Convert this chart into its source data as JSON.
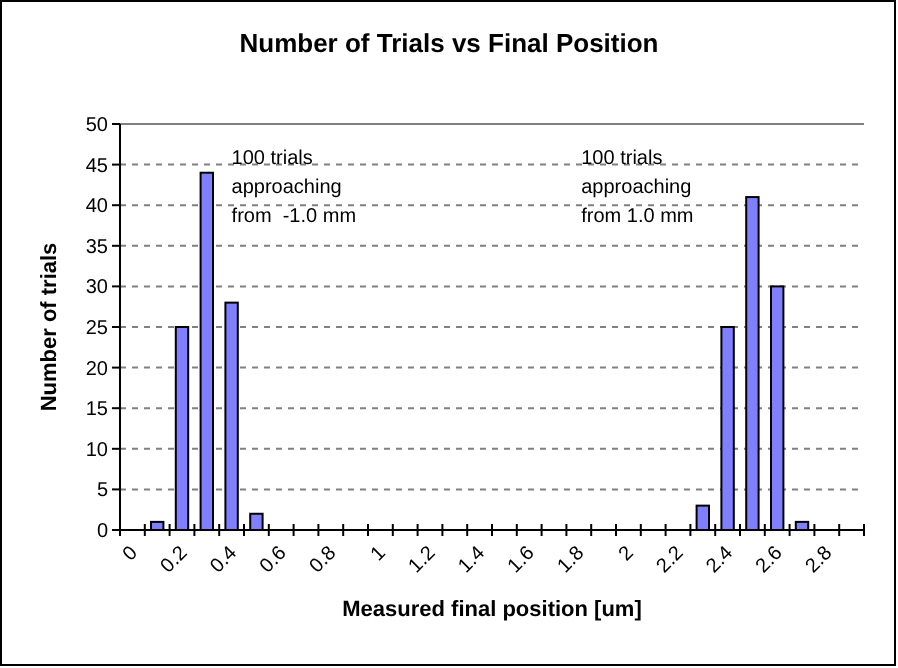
{
  "chart_data": {
    "type": "bar",
    "title": "Number of Trials vs Final Position",
    "xlabel": "Measured final position [um]",
    "ylabel": "Number of trials",
    "categories": [
      "0",
      null,
      "0.2",
      null,
      "0.4",
      null,
      "0.6",
      null,
      "0.8",
      null,
      "1",
      null,
      "1.2",
      null,
      "1.4",
      null,
      "1.6",
      null,
      "1.8",
      null,
      "2",
      null,
      "2.2",
      null,
      "2.4",
      null,
      "2.6",
      null,
      "2.8",
      null
    ],
    "values": [
      0,
      1,
      25,
      44,
      28,
      2,
      0,
      0,
      0,
      0,
      0,
      0,
      0,
      0,
      0,
      0,
      0,
      0,
      0,
      0,
      0,
      0,
      0,
      3,
      25,
      41,
      30,
      1,
      0,
      0
    ],
    "color": "#7f7fff",
    "ylim": [
      0,
      50
    ],
    "yticks": [
      0,
      5,
      10,
      15,
      20,
      25,
      30,
      35,
      40,
      45,
      50
    ],
    "grid": "y",
    "annotations": [
      "100 trials\napproaching\nfrom  -1.0 mm",
      "100 trials\napproaching\nfrom 1.0 mm"
    ]
  }
}
